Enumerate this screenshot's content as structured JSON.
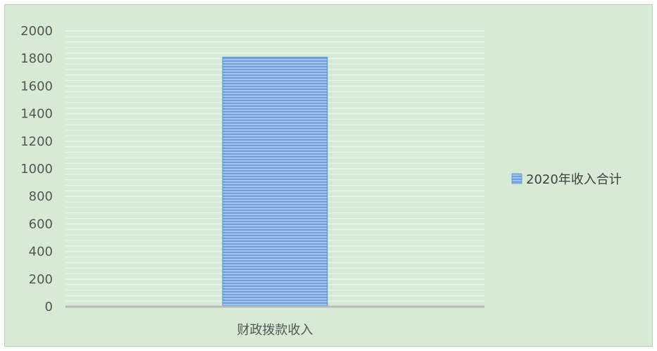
{
  "chart_data": {
    "type": "bar",
    "categories": [
      "财政拨款收入"
    ],
    "series": [
      {
        "name": "2020年收入合计",
        "values": [
          1810
        ]
      }
    ],
    "yticks": [
      "0",
      "200",
      "400",
      "600",
      "800",
      "1000",
      "1200",
      "1400",
      "1600",
      "1800",
      "2000"
    ],
    "ylim": [
      0,
      2000
    ],
    "grid": true,
    "legend_position": "right",
    "colors": {
      "background": "#d6ead6",
      "bar": "#6fa0dc",
      "bar_stripe": "#9cc2ee",
      "grid": "#eaf5ea",
      "axis": "#b8b8b8"
    }
  }
}
